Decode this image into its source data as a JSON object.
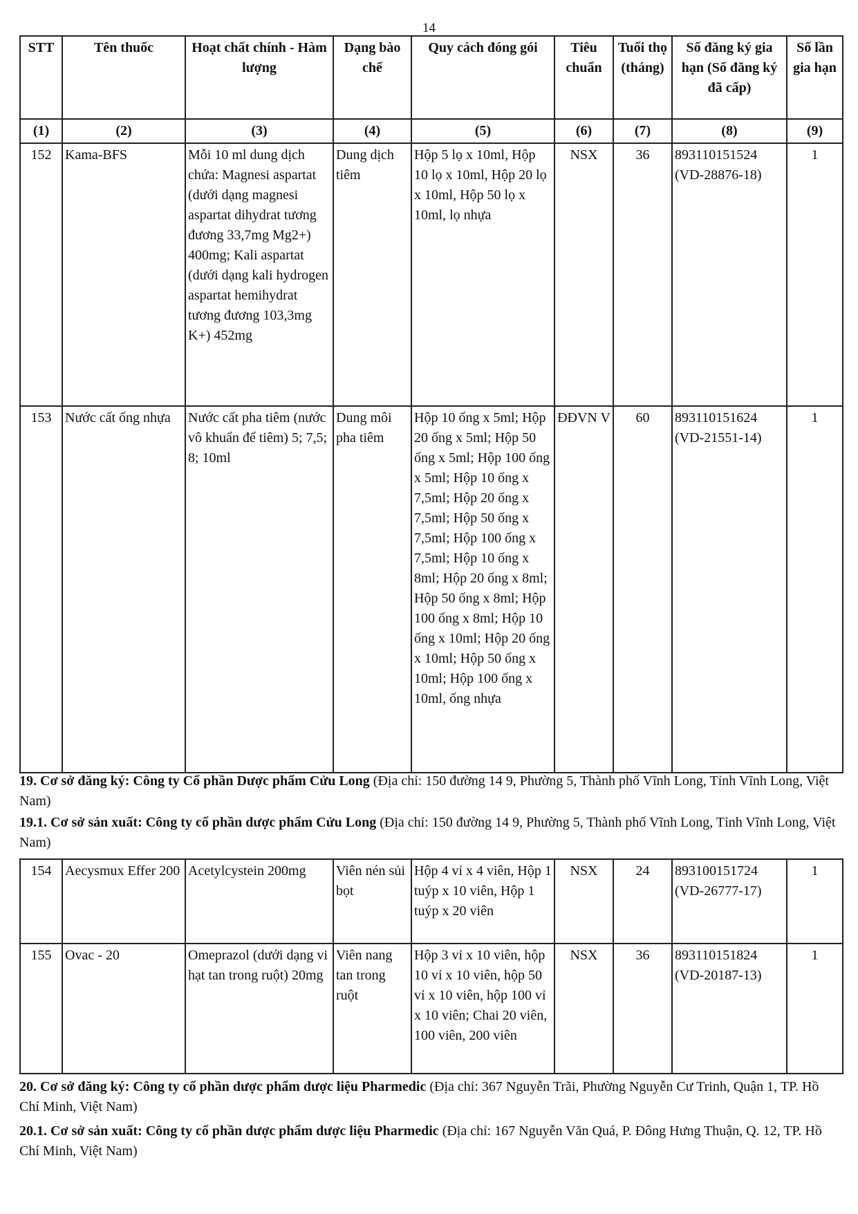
{
  "page_number": "14",
  "headers": [
    "STT",
    "Tên thuốc",
    "Hoạt chất chính - Hàm lượng",
    "Dạng bào chế",
    "Quy cách đóng gói",
    "Tiêu chuẩn",
    "Tuổi thọ (tháng)",
    "Số đăng ký gia hạn (Số đăng ký đã cấp)",
    "Số lần gia hạn"
  ],
  "col_numbers": [
    "(1)",
    "(2)",
    "(3)",
    "(4)",
    "(5)",
    "(6)",
    "(7)",
    "(8)",
    "(9)"
  ],
  "rows1": [
    [
      "152",
      "Kama-BFS",
      "Mỗi 10 ml dung dịch chứa: Magnesi aspartat (dưới dạng magnesi aspartat dihydrat tương đương 33,7mg Mg2+) 400mg; Kali aspartat (dưới dạng kali hydrogen aspartat hemihydrat tương đương 103,3mg K+) 452mg",
      "Dung dịch tiêm",
      "Hộp 5 lọ x 10ml, Hộp 10 lọ x 10ml, Hộp 20 lọ x 10ml, Hộp 50 lọ x 10ml, lọ nhựa",
      "NSX",
      "36",
      "893110151524 (VD-28876-18)",
      "1"
    ],
    [
      "153",
      "Nước cất ống nhựa",
      "Nước cất pha tiêm (nước vô khuẩn để tiêm) 5; 7,5; 8; 10ml",
      "Dung môi pha tiêm",
      "Hộp 10 ống x 5ml; Hộp 20 ống x 5ml; Hộp 50 ống x 5ml; Hộp 100 ống x 5ml; Hộp 10 ống x 7,5ml; Hộp 20 ống x 7,5ml; Hộp 50 ống x 7,5ml; Hộp 100 ống x 7,5ml; Hộp 10 ống x 8ml; Hộp 20 ống x 8ml; Hộp 50 ống x 8ml; Hộp 100 ống x 8ml; Hộp 10 ống x 10ml; Hộp 20 ống x 10ml; Hộp 50 ống x 10ml; Hộp 100 ống x 10ml, ống nhựa",
      "ĐĐVN V",
      "60",
      "893110151624 (VD-21551-14)",
      "1"
    ]
  ],
  "section19": {
    "bold": "19. Cơ sở đăng ký: Công ty Cổ phần Dược phẩm Cửu Long",
    "rest": " (Địa chỉ: 150 đường 14 9, Phường 5, Thành phố Vĩnh Long, Tỉnh Vĩnh Long, Việt Nam)"
  },
  "section19_1": {
    "bold": "19.1. Cơ sở sản xuất: Công ty cổ phần dược phẩm Cửu Long",
    "rest": " (Địa chỉ: 150 đường 14 9, Phường 5, Thành phố Vĩnh Long, Tỉnh Vĩnh Long, Việt Nam)"
  },
  "rows2": [
    [
      "154",
      "Aecysmux Effer 200",
      "Acetylcystein 200mg",
      "Viên nén sủi bọt",
      "Hộp 4 vỉ x 4 viên, Hộp 1 tuýp x 10 viên, Hộp 1 tuýp x 20 viên",
      "NSX",
      "24",
      "893100151724 (VD-26777-17)",
      "1"
    ],
    [
      "155",
      "Ovac - 20",
      "Omeprazol (dưới dạng vi hạt tan trong ruột) 20mg",
      "Viên nang tan trong ruột",
      "Hộp 3 vỉ x 10 viên, hộp 10 vỉ x 10 viên, hộp 50 vỉ x 10 viên, hộp 100 vỉ x 10 viên; Chai 20 viên, 100 viên, 200 viên",
      "NSX",
      "36",
      "893110151824 (VD-20187-13)",
      "1"
    ]
  ],
  "section20": {
    "bold": "20. Cơ sở đăng ký: Công ty cổ phần dược phẩm dược liệu Pharmedic",
    "rest": " (Địa chỉ: 367 Nguyễn Trãi, Phường Nguyễn Cư Trinh, Quận 1, TP. Hồ Chí Minh, Việt Nam)"
  },
  "section20_1": {
    "bold": "20.1. Cơ sở sản xuất: Công ty cổ phần dược phẩm dược liệu Pharmedic",
    "rest": " (Địa chỉ: 167 Nguyễn Văn Quá, P. Đông Hưng Thuận, Q. 12, TP. Hồ Chí Minh, Việt Nam)"
  }
}
